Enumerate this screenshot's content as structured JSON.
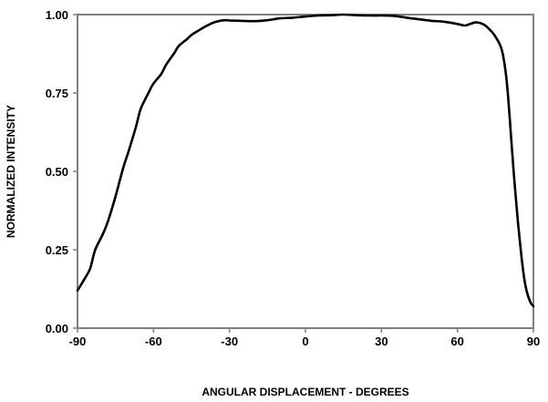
{
  "chart_data": {
    "type": "line",
    "title": "",
    "xlabel": "ANGULAR DISPLACEMENT  -  DEGREES",
    "ylabel": "NORMALIZED INTENSITY",
    "xlim": [
      -90,
      90
    ],
    "ylim": [
      0,
      1
    ],
    "x_ticks": [
      -90,
      -60,
      -30,
      0,
      30,
      60,
      90
    ],
    "y_ticks": [
      0,
      0.25,
      0.5,
      0.75,
      1
    ],
    "x_tick_labels": [
      "-90",
      "-60",
      "-30",
      "0",
      "30",
      "60",
      "90"
    ],
    "y_tick_labels": [
      "0.00",
      "0.25",
      "0.50",
      "0.75",
      "1.00"
    ],
    "grid": false,
    "line_color": "#000000",
    "frame_color": "#808080",
    "series": [
      {
        "x": [
          -90,
          -87,
          -85,
          -83,
          -80,
          -78,
          -75,
          -72,
          -70,
          -67,
          -65,
          -62,
          -60,
          -57,
          -55,
          -52,
          -50,
          -47,
          -45,
          -42,
          -40,
          -37,
          -35,
          -32,
          -30,
          -25,
          -20,
          -15,
          -10,
          -5,
          0,
          5,
          10,
          15,
          20,
          25,
          30,
          35,
          40,
          45,
          50,
          55,
          60,
          63,
          65,
          67,
          69,
          71,
          73,
          75,
          77,
          78,
          79,
          80,
          81,
          82,
          83,
          84,
          85,
          86,
          87,
          88,
          89,
          90
        ],
        "y": [
          0.12,
          0.16,
          0.19,
          0.25,
          0.3,
          0.34,
          0.42,
          0.51,
          0.56,
          0.64,
          0.7,
          0.75,
          0.78,
          0.81,
          0.84,
          0.875,
          0.9,
          0.92,
          0.935,
          0.95,
          0.96,
          0.972,
          0.978,
          0.982,
          0.981,
          0.98,
          0.979,
          0.982,
          0.988,
          0.99,
          0.994,
          0.997,
          0.998,
          1.0,
          0.998,
          0.997,
          0.997,
          0.996,
          0.99,
          0.985,
          0.98,
          0.977,
          0.97,
          0.965,
          0.97,
          0.975,
          0.973,
          0.965,
          0.95,
          0.93,
          0.9,
          0.87,
          0.82,
          0.74,
          0.63,
          0.52,
          0.42,
          0.33,
          0.25,
          0.18,
          0.13,
          0.1,
          0.08,
          0.07
        ]
      }
    ]
  }
}
